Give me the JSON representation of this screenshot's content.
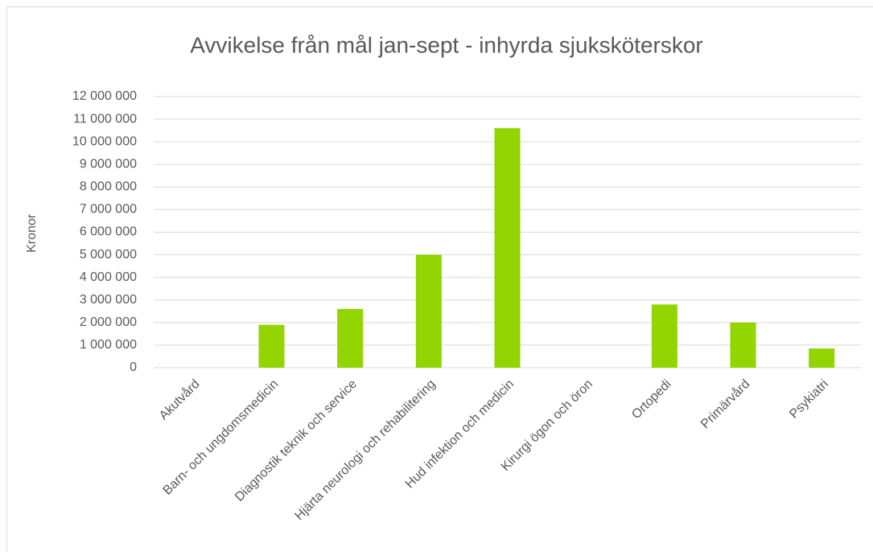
{
  "chart_data": {
    "type": "bar",
    "title": "Avvikelse från mål jan-sept - inhyrda sjuksköterskor",
    "y_label": "Kronor",
    "categories": [
      "Akutvård",
      "Barn- och ungdomsmedicin",
      "Diagnostik teknik och service",
      "Hjärta neurologi och rehabilitering",
      "Hud infektion och medicin",
      "Kirurgi ögon och öron",
      "Ortopedi",
      "Primärvård",
      "Psykiatri"
    ],
    "values": [
      0,
      1900000,
      2600000,
      5000000,
      10600000,
      0,
      2800000,
      2000000,
      850000
    ],
    "color": "#92d500",
    "ylim": [
      0,
      12000000
    ],
    "yticks": [
      0,
      {
        "value": 1000000,
        "label": "1 000 000"
      },
      {
        "value": 2000000,
        "label": "2 000 000"
      },
      {
        "value": 3000000,
        "label": "3 000 000"
      },
      {
        "value": 4000000,
        "label": "4 000 000"
      },
      {
        "value": 5000000,
        "label": "5 000 000"
      },
      {
        "value": 6000000,
        "label": "6 000 000"
      },
      {
        "value": 7000000,
        "label": "7 000 000"
      },
      {
        "value": 8000000,
        "label": "8 000 000"
      },
      {
        "value": 9000000,
        "label": "9 000 000"
      },
      {
        "value": 10000000,
        "label": "10 000 000"
      },
      {
        "value": 11000000,
        "label": "11 000 000"
      },
      {
        "value": 12000000,
        "label": "12 000 000"
      }
    ],
    "grid": true
  }
}
